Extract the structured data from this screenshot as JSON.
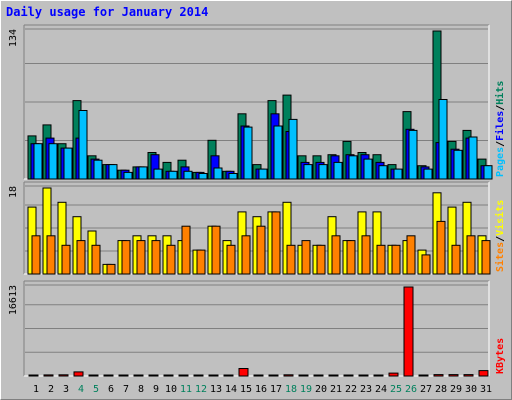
{
  "title": "Daily usage for January 2014",
  "colors": {
    "hits": "#00805c",
    "files": "#0000ff",
    "pages": "#00c0ff",
    "visits": "#ffff00",
    "sites": "#ff8000",
    "kbytes": "#ff0000",
    "weekend_label": "#00805c",
    "weekday_label": "#000000"
  },
  "chart_data": [
    {
      "type": "bar",
      "title": "Daily usage for January 2014",
      "categories": [
        "1",
        "2",
        "3",
        "4",
        "5",
        "6",
        "7",
        "8",
        "9",
        "10",
        "11",
        "12",
        "13",
        "14",
        "15",
        "16",
        "17",
        "18",
        "19",
        "20",
        "21",
        "22",
        "23",
        "24",
        "25",
        "26",
        "27",
        "28",
        "29",
        "30",
        "31"
      ],
      "weekend_days": [
        "4",
        "5",
        "11",
        "12",
        "18",
        "19",
        "25",
        "26"
      ],
      "ymax_label": "134",
      "ylim": [
        0,
        134
      ],
      "grid": true,
      "legend_parts": [
        "Pages",
        "/",
        "Files",
        "/",
        "Hits"
      ],
      "series": [
        {
          "name": "Hits",
          "values": [
            39,
            49,
            32,
            71,
            21,
            13,
            8,
            11,
            24,
            15,
            17,
            6,
            35,
            7,
            59,
            13,
            71,
            76,
            21,
            21,
            22,
            34,
            24,
            22,
            13,
            61,
            12,
            134,
            34,
            44,
            18
          ]
        },
        {
          "name": "Files",
          "values": [
            32,
            37,
            28,
            37,
            18,
            13,
            8,
            11,
            22,
            7,
            11,
            6,
            21,
            7,
            48,
            9,
            59,
            43,
            15,
            15,
            21,
            22,
            22,
            15,
            9,
            45,
            11,
            33,
            27,
            37,
            12
          ]
        },
        {
          "name": "Pages",
          "values": [
            32,
            32,
            28,
            62,
            17,
            13,
            6,
            11,
            9,
            7,
            7,
            5,
            10,
            5,
            47,
            9,
            48,
            54,
            13,
            13,
            15,
            21,
            18,
            12,
            9,
            44,
            9,
            72,
            26,
            38,
            12
          ]
        }
      ]
    },
    {
      "type": "bar",
      "categories": [
        "1",
        "2",
        "3",
        "4",
        "5",
        "6",
        "7",
        "8",
        "9",
        "10",
        "11",
        "12",
        "13",
        "14",
        "15",
        "16",
        "17",
        "18",
        "19",
        "20",
        "21",
        "22",
        "23",
        "24",
        "25",
        "26",
        "27",
        "28",
        "29",
        "30",
        "31"
      ],
      "ymax_label": "18",
      "ylim": [
        0,
        18
      ],
      "grid": true,
      "legend_parts": [
        "Sites",
        "/",
        "Visits"
      ],
      "series": [
        {
          "name": "Visits",
          "values": [
            14,
            18,
            15,
            12,
            9,
            2,
            7,
            8,
            8,
            8,
            7,
            5,
            10,
            7,
            13,
            12,
            13,
            15,
            6,
            6,
            12,
            7,
            13,
            13,
            6,
            7,
            5,
            17,
            14,
            15,
            8
          ]
        },
        {
          "name": "Sites",
          "values": [
            8,
            8,
            6,
            7,
            6,
            2,
            7,
            7,
            7,
            6,
            10,
            5,
            10,
            6,
            8,
            10,
            13,
            6,
            7,
            6,
            8,
            7,
            8,
            6,
            6,
            8,
            4,
            11,
            6,
            8,
            7
          ]
        }
      ]
    },
    {
      "type": "bar",
      "categories": [
        "1",
        "2",
        "3",
        "4",
        "5",
        "6",
        "7",
        "8",
        "9",
        "10",
        "11",
        "12",
        "13",
        "14",
        "15",
        "16",
        "17",
        "18",
        "19",
        "20",
        "21",
        "22",
        "23",
        "24",
        "25",
        "26",
        "27",
        "28",
        "29",
        "30",
        "31"
      ],
      "ymax_label": "16613",
      "ylim": [
        0,
        16613
      ],
      "grid": true,
      "legend_parts": [
        "KBytes"
      ],
      "series": [
        {
          "name": "KBytes",
          "values": [
            160,
            200,
            220,
            770,
            110,
            60,
            60,
            60,
            60,
            60,
            60,
            60,
            60,
            60,
            1400,
            60,
            180,
            220,
            110,
            110,
            110,
            110,
            110,
            110,
            550,
            16613,
            110,
            270,
            270,
            270,
            1000
          ]
        }
      ]
    }
  ]
}
